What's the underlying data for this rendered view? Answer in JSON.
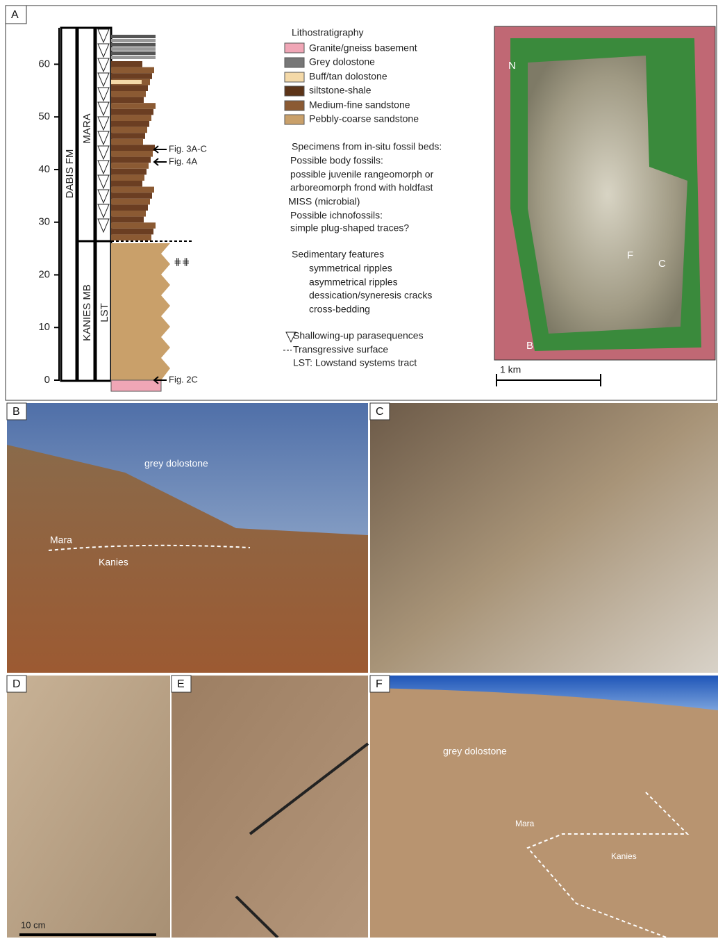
{
  "panel_a": {
    "label": "A",
    "column": {
      "yticks": [
        0,
        10,
        20,
        30,
        40,
        50,
        60
      ],
      "ylim": [
        0,
        66
      ],
      "units": [
        "DABIS FM",
        "MARA",
        "KANIES MB",
        "LST"
      ],
      "refs": [
        "Fig. 3A-C",
        "Fig. 4A",
        "Fig. 2C"
      ]
    },
    "legend": {
      "litho_title": "Lithostratigraphy",
      "litho": [
        "Granite/gneiss basement",
        "Grey dolostone",
        "Buff/tan dolostone",
        "siltstone-shale",
        "Medium-fine sandstone",
        "Pebbly-coarse sandstone"
      ],
      "specimens": [
        "Specimens from in-situ fossil beds:",
        "Possible body fossils:",
        "possible juvenile rangeomorph or",
        "arboreomorph frond with holdfast",
        "MISS (microbial)",
        "Possible ichnofossils:",
        "simple plug-shaped traces?"
      ],
      "sed_title": "Sedimentary features",
      "sed": [
        "symmetrical ripples",
        "asymmetrical ripples",
        "dessication/syneresis cracks",
        "cross-bedding"
      ],
      "other": [
        "Shallowing-up parasequences",
        "Transgressive surface",
        "LST: Lowstand systems tract"
      ]
    },
    "map": {
      "labels": [
        "N",
        "F",
        "C",
        "B"
      ],
      "scale": "1 km"
    }
  },
  "panel_b": {
    "label": "B",
    "annotations": [
      "grey dolostone",
      "Mara",
      "Kanies"
    ]
  },
  "panel_c": {
    "label": "C"
  },
  "panel_d": {
    "label": "D",
    "scale": "10 cm"
  },
  "panel_e": {
    "label": "E"
  },
  "panel_f": {
    "label": "F",
    "annotations": [
      "grey dolostone",
      "Mara",
      "Kanies"
    ]
  }
}
